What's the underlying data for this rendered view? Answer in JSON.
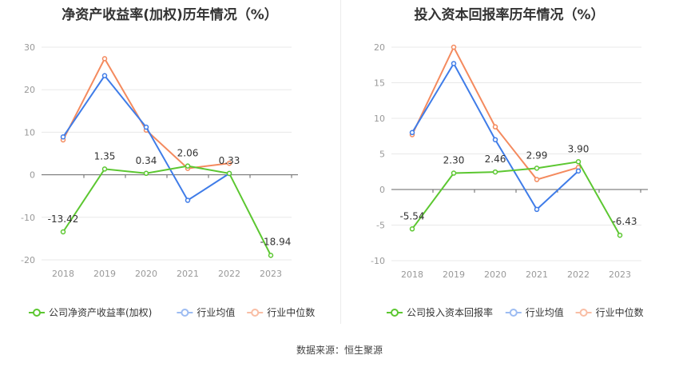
{
  "source": "数据来源：恒生聚源",
  "legend_labels": {
    "industry_avg": "行业均值",
    "industry_median": "行业中位数"
  },
  "colors": {
    "company": "#5cc731",
    "industry_avg": "#3f7ce8",
    "industry_median": "#f48a5e",
    "legend_avg_marker": "#9dbcf2",
    "legend_median_marker": "#f9bea5"
  },
  "chart_data": [
    {
      "type": "line",
      "title": "净资产收益率(加权)历年情况（%）",
      "categories": [
        "2018",
        "2019",
        "2020",
        "2021",
        "2022",
        "2023"
      ],
      "ylim": [
        -20,
        30
      ],
      "yticks": [
        "-20",
        "-10",
        "0",
        "10",
        "20",
        "30"
      ],
      "grid": true,
      "legend_position": "bottom",
      "series": [
        {
          "name": "公司净资产收益率(加权)",
          "values": [
            -13.42,
            1.35,
            0.34,
            2.06,
            0.33,
            -18.94
          ],
          "labels": [
            "-13.42",
            "1.35",
            "0.34",
            "2.06",
            "0.33",
            "-18.94"
          ]
        },
        {
          "name": "行业均值",
          "values": [
            8.9,
            23.3,
            11.2,
            -6.0,
            0.3,
            null
          ]
        },
        {
          "name": "行业中位数",
          "values": [
            8.2,
            27.3,
            10.5,
            1.5,
            2.7,
            null
          ]
        }
      ]
    },
    {
      "type": "line",
      "title": "投入资本回报率历年情况（%）",
      "categories": [
        "2018",
        "2019",
        "2020",
        "2021",
        "2022",
        "2023"
      ],
      "ylim": [
        -10,
        20
      ],
      "yticks": [
        "-10",
        "-5",
        "0",
        "5",
        "10",
        "15",
        "20"
      ],
      "grid": true,
      "legend_position": "bottom",
      "series": [
        {
          "name": "公司投入资本回报率",
          "values": [
            -5.54,
            2.3,
            2.46,
            2.99,
            3.9,
            -6.43
          ],
          "labels": [
            "-5.54",
            "2.30",
            "2.46",
            "2.99",
            "3.90",
            "-6.43"
          ]
        },
        {
          "name": "行业均值",
          "values": [
            8.0,
            17.7,
            7.0,
            -2.8,
            2.6,
            null
          ]
        },
        {
          "name": "行业中位数",
          "values": [
            7.7,
            20.0,
            8.8,
            1.4,
            3.1,
            null
          ]
        }
      ]
    }
  ]
}
